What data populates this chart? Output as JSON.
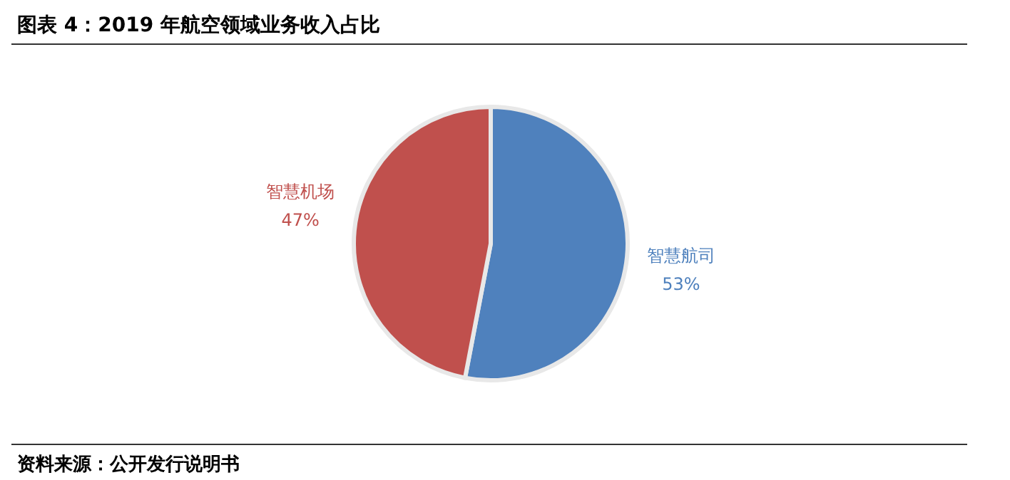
{
  "chart_data": {
    "type": "pie",
    "title": "图表 4：2019 年航空领域业务收入占比",
    "categories": [
      "智慧航司",
      "智慧机场"
    ],
    "values": [
      53,
      47
    ],
    "colors": [
      "#4f81bd",
      "#c0504d"
    ],
    "value_labels": [
      "53%",
      "47%"
    ],
    "annotations": [
      "资料来源：公开发行说明书"
    ]
  }
}
